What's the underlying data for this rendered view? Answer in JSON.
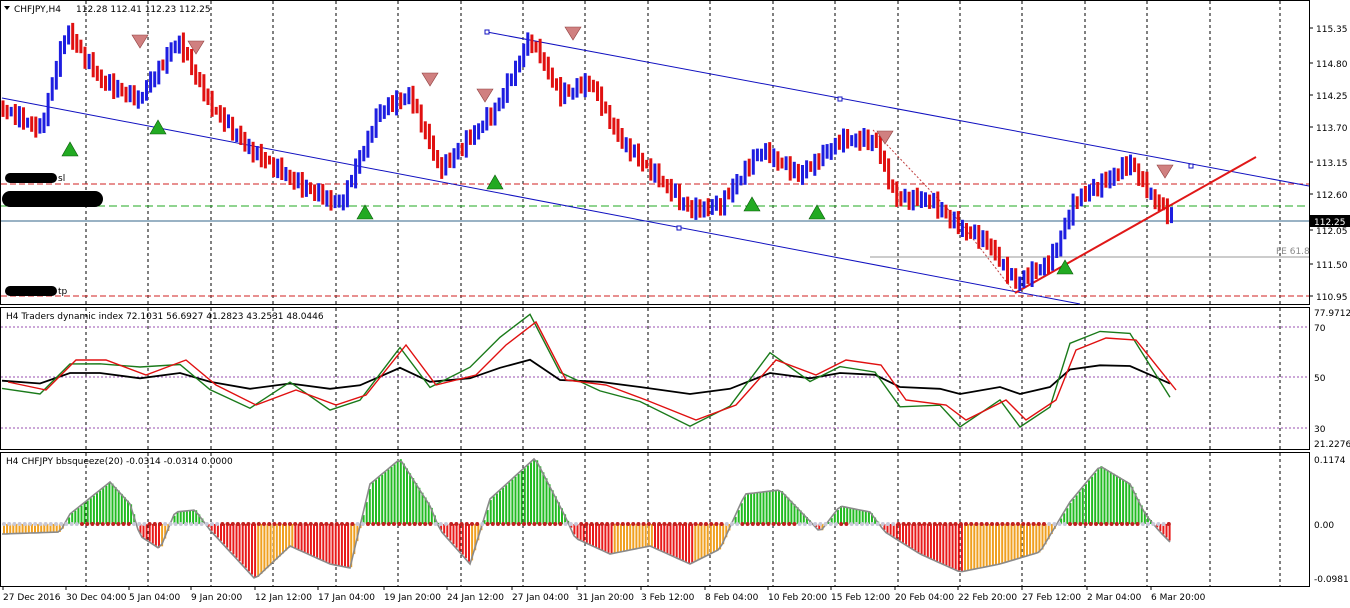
{
  "window": {
    "symbol_title": "CHFJPY,H4",
    "ohlc": "112.28 112.41 112.23 112.25"
  },
  "main_chart": {
    "price_labels": [
      "115.35",
      "114.80",
      "114.25",
      "113.70",
      "113.15",
      "112.60",
      "112.05",
      "111.50",
      "110.95"
    ],
    "current_price": "112.25",
    "sl_label": "sl",
    "tp_label": "tp",
    "fe_label": "FE 61.8"
  },
  "indicator1": {
    "title": "H4 Traders dynamic index 72.1031 56.6927 41.2823 43.2531 48.0446",
    "labels": [
      "77.9712",
      "70",
      "50",
      "30",
      "21.2276"
    ]
  },
  "indicator2": {
    "title": "H4 CHFJPY bbsqueeze(20) -0.0314 -0.0314 0.0000",
    "labels": [
      "0.1174",
      "0.00",
      "-0.0981"
    ]
  },
  "time_axis": {
    "labels": [
      "27 Dec 2016",
      "30 Dec 04:00",
      "5 Jan 04:00",
      "9 Jan 20:00",
      "12 Jan 12:00",
      "17 Jan 04:00",
      "19 Jan 20:00",
      "24 Jan 12:00",
      "27 Jan 04:00",
      "31 Jan 20:00",
      "3 Feb 12:00",
      "8 Feb 04:00",
      "10 Feb 20:00",
      "15 Feb 12:00",
      "20 Feb 04:00",
      "22 Feb 20:00",
      "27 Feb 12:00",
      "2 Mar 04:00",
      "6 Mar 20:00"
    ]
  },
  "colors": {
    "bull": "#1e1ee0",
    "bear": "#e01010",
    "channel": "#1010c0",
    "trendline": "#e01818",
    "grid": "#000000",
    "tdi_green": "#1a7a1a",
    "tdi_red": "#e01010",
    "tdi_black": "#000000",
    "sq_green": "#22bb22",
    "sq_red": "#e81a1a",
    "sq_orange": "#f0a020"
  }
}
